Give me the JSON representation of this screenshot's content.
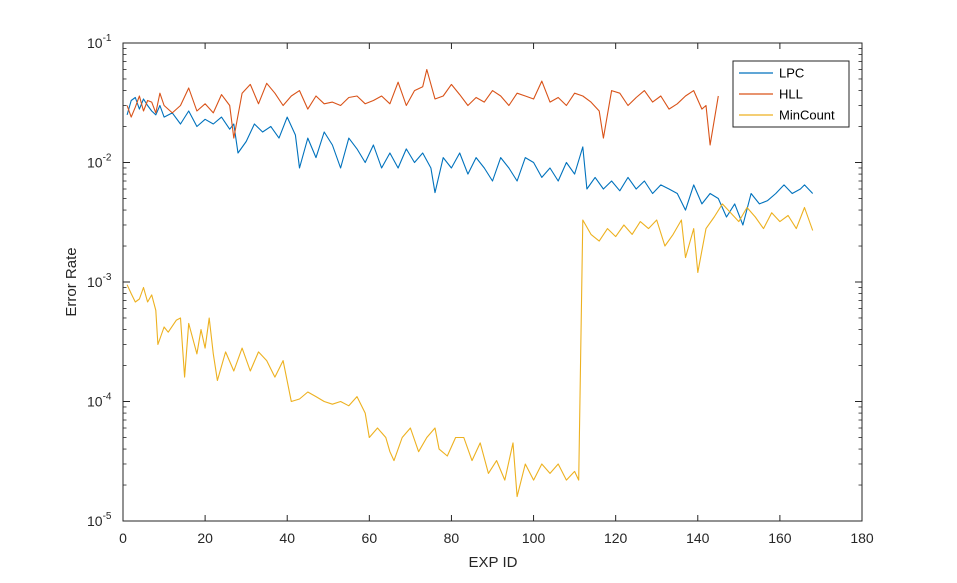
{
  "chart_data": {
    "type": "line",
    "title": "",
    "xlabel": "EXP ID",
    "ylabel": "Error Rate",
    "xlim": [
      0,
      180
    ],
    "ylim": [
      1e-05,
      0.1
    ],
    "yscale": "log",
    "grid": false,
    "legend_position": "top-right",
    "x_ticks": [
      0,
      20,
      40,
      60,
      80,
      100,
      120,
      140,
      160,
      180
    ],
    "x_tick_labels": [
      "0",
      "20",
      "40",
      "60",
      "80",
      "100",
      "120",
      "140",
      "160",
      "180"
    ],
    "y_ticks": [
      1e-05,
      0.0001,
      0.001,
      0.01,
      0.1
    ],
    "y_tick_labels": [
      {
        "base": "10",
        "exp": "-5"
      },
      {
        "base": "10",
        "exp": "-4"
      },
      {
        "base": "10",
        "exp": "-3"
      },
      {
        "base": "10",
        "exp": "-2"
      },
      {
        "base": "10",
        "exp": "-1"
      }
    ],
    "series": [
      {
        "name": "LPC",
        "color": "#0072BD",
        "keypoints": [
          [
            1,
            0.025
          ],
          [
            2,
            0.033
          ],
          [
            3,
            0.035
          ],
          [
            4,
            0.028
          ],
          [
            5,
            0.034
          ],
          [
            6,
            0.03
          ],
          [
            7,
            0.027
          ],
          [
            8,
            0.025
          ],
          [
            9,
            0.03
          ],
          [
            10,
            0.024
          ],
          [
            12,
            0.026
          ],
          [
            14,
            0.021
          ],
          [
            16,
            0.027
          ],
          [
            18,
            0.02
          ],
          [
            20,
            0.023
          ],
          [
            22,
            0.021
          ],
          [
            24,
            0.024
          ],
          [
            26,
            0.019
          ],
          [
            27,
            0.021
          ],
          [
            28,
            0.012
          ],
          [
            30,
            0.015
          ],
          [
            32,
            0.021
          ],
          [
            34,
            0.018
          ],
          [
            36,
            0.02
          ],
          [
            38,
            0.016
          ],
          [
            40,
            0.024
          ],
          [
            42,
            0.017
          ],
          [
            43,
            0.009
          ],
          [
            45,
            0.016
          ],
          [
            47,
            0.011
          ],
          [
            49,
            0.018
          ],
          [
            51,
            0.014
          ],
          [
            53,
            0.009
          ],
          [
            55,
            0.016
          ],
          [
            57,
            0.013
          ],
          [
            59,
            0.01
          ],
          [
            61,
            0.014
          ],
          [
            63,
            0.009
          ],
          [
            65,
            0.012
          ],
          [
            67,
            0.009
          ],
          [
            69,
            0.013
          ],
          [
            71,
            0.01
          ],
          [
            73,
            0.012
          ],
          [
            75,
            0.009
          ],
          [
            76,
            0.0056
          ],
          [
            78,
            0.011
          ],
          [
            80,
            0.009
          ],
          [
            82,
            0.012
          ],
          [
            84,
            0.008
          ],
          [
            86,
            0.011
          ],
          [
            88,
            0.009
          ],
          [
            90,
            0.007
          ],
          [
            92,
            0.011
          ],
          [
            94,
            0.009
          ],
          [
            96,
            0.007
          ],
          [
            98,
            0.011
          ],
          [
            100,
            0.01
          ],
          [
            102,
            0.0075
          ],
          [
            104,
            0.009
          ],
          [
            106,
            0.007
          ],
          [
            108,
            0.01
          ],
          [
            110,
            0.008
          ],
          [
            112,
            0.0135
          ],
          [
            113,
            0.006
          ],
          [
            115,
            0.0075
          ],
          [
            117,
            0.006
          ],
          [
            119,
            0.007
          ],
          [
            121,
            0.0058
          ],
          [
            123,
            0.0075
          ],
          [
            125,
            0.006
          ],
          [
            127,
            0.007
          ],
          [
            129,
            0.0055
          ],
          [
            131,
            0.0065
          ],
          [
            133,
            0.006
          ],
          [
            135,
            0.0055
          ],
          [
            137,
            0.004
          ],
          [
            139,
            0.0065
          ],
          [
            141,
            0.0045
          ],
          [
            143,
            0.0055
          ],
          [
            145,
            0.005
          ],
          [
            147,
            0.0035
          ],
          [
            149,
            0.0045
          ],
          [
            151,
            0.003
          ],
          [
            153,
            0.0055
          ],
          [
            155,
            0.0045
          ],
          [
            157,
            0.0048
          ],
          [
            159,
            0.0055
          ],
          [
            161,
            0.0065
          ],
          [
            163,
            0.0055
          ],
          [
            165,
            0.006
          ],
          [
            166,
            0.0065
          ],
          [
            168,
            0.0055
          ]
        ]
      },
      {
        "name": "HLL",
        "color": "#D95319",
        "keypoints": [
          [
            1,
            0.03
          ],
          [
            2,
            0.024
          ],
          [
            3,
            0.029
          ],
          [
            4,
            0.036
          ],
          [
            5,
            0.027
          ],
          [
            6,
            0.033
          ],
          [
            7,
            0.032
          ],
          [
            8,
            0.026
          ],
          [
            9,
            0.038
          ],
          [
            10,
            0.03
          ],
          [
            12,
            0.026
          ],
          [
            14,
            0.03
          ],
          [
            16,
            0.042
          ],
          [
            18,
            0.027
          ],
          [
            20,
            0.031
          ],
          [
            22,
            0.026
          ],
          [
            24,
            0.037
          ],
          [
            26,
            0.03
          ],
          [
            27,
            0.016
          ],
          [
            29,
            0.038
          ],
          [
            31,
            0.045
          ],
          [
            33,
            0.031
          ],
          [
            35,
            0.046
          ],
          [
            37,
            0.038
          ],
          [
            39,
            0.03
          ],
          [
            41,
            0.036
          ],
          [
            43,
            0.04
          ],
          [
            45,
            0.028
          ],
          [
            47,
            0.036
          ],
          [
            49,
            0.031
          ],
          [
            51,
            0.032
          ],
          [
            53,
            0.03
          ],
          [
            55,
            0.035
          ],
          [
            57,
            0.036
          ],
          [
            59,
            0.031
          ],
          [
            61,
            0.033
          ],
          [
            63,
            0.036
          ],
          [
            65,
            0.031
          ],
          [
            67,
            0.047
          ],
          [
            69,
            0.03
          ],
          [
            71,
            0.04
          ],
          [
            73,
            0.043
          ],
          [
            74,
            0.06
          ],
          [
            76,
            0.034
          ],
          [
            78,
            0.036
          ],
          [
            80,
            0.045
          ],
          [
            82,
            0.037
          ],
          [
            84,
            0.03
          ],
          [
            86,
            0.035
          ],
          [
            88,
            0.032
          ],
          [
            90,
            0.04
          ],
          [
            92,
            0.036
          ],
          [
            94,
            0.03
          ],
          [
            96,
            0.038
          ],
          [
            98,
            0.036
          ],
          [
            100,
            0.034
          ],
          [
            102,
            0.048
          ],
          [
            104,
            0.032
          ],
          [
            106,
            0.035
          ],
          [
            108,
            0.03
          ],
          [
            110,
            0.038
          ],
          [
            112,
            0.036
          ],
          [
            114,
            0.032
          ],
          [
            116,
            0.027
          ],
          [
            117,
            0.016
          ],
          [
            119,
            0.04
          ],
          [
            121,
            0.038
          ],
          [
            123,
            0.03
          ],
          [
            125,
            0.035
          ],
          [
            127,
            0.04
          ],
          [
            129,
            0.032
          ],
          [
            131,
            0.036
          ],
          [
            133,
            0.028
          ],
          [
            135,
            0.031
          ],
          [
            137,
            0.036
          ],
          [
            139,
            0.04
          ],
          [
            141,
            0.028
          ],
          [
            142,
            0.03
          ],
          [
            143,
            0.014
          ],
          [
            145,
            0.036
          ]
        ]
      },
      {
        "name": "MinCount",
        "color": "#EDB120",
        "keypoints": [
          [
            1,
            0.00095
          ],
          [
            2,
            0.0008
          ],
          [
            3,
            0.00068
          ],
          [
            4,
            0.00072
          ],
          [
            5,
            0.0009
          ],
          [
            6,
            0.00068
          ],
          [
            7,
            0.00078
          ],
          [
            8,
            0.00058
          ],
          [
            8.5,
            0.0003
          ],
          [
            10,
            0.00042
          ],
          [
            11,
            0.00038
          ],
          [
            13,
            0.00048
          ],
          [
            14,
            0.0005
          ],
          [
            15,
            0.00016
          ],
          [
            16,
            0.00045
          ],
          [
            18,
            0.00025
          ],
          [
            19,
            0.0004
          ],
          [
            20,
            0.00028
          ],
          [
            21,
            0.0005
          ],
          [
            22,
            0.00025
          ],
          [
            23,
            0.00015
          ],
          [
            25,
            0.00026
          ],
          [
            27,
            0.00018
          ],
          [
            29,
            0.00028
          ],
          [
            31,
            0.00018
          ],
          [
            33,
            0.00026
          ],
          [
            35,
            0.00022
          ],
          [
            37,
            0.00016
          ],
          [
            39,
            0.00022
          ],
          [
            41,
            0.0001
          ],
          [
            43,
            0.000105
          ],
          [
            45,
            0.00012
          ],
          [
            47,
            0.00011
          ],
          [
            49,
            0.0001
          ],
          [
            51,
            9.5e-05
          ],
          [
            53,
            0.0001
          ],
          [
            55,
            9.2e-05
          ],
          [
            57,
            0.00011
          ],
          [
            59,
            8e-05
          ],
          [
            60,
            5e-05
          ],
          [
            62,
            6e-05
          ],
          [
            64,
            5e-05
          ],
          [
            65,
            3.8e-05
          ],
          [
            66,
            3.2e-05
          ],
          [
            68,
            5e-05
          ],
          [
            70,
            6e-05
          ],
          [
            72,
            3.8e-05
          ],
          [
            74,
            5e-05
          ],
          [
            76,
            6e-05
          ],
          [
            77,
            4e-05
          ],
          [
            79,
            3.5e-05
          ],
          [
            81,
            5e-05
          ],
          [
            83,
            5e-05
          ],
          [
            85,
            3.2e-05
          ],
          [
            87,
            4.5e-05
          ],
          [
            89,
            2.5e-05
          ],
          [
            91,
            3.2e-05
          ],
          [
            93,
            2.2e-05
          ],
          [
            95,
            4.5e-05
          ],
          [
            96,
            1.6e-05
          ],
          [
            98,
            3e-05
          ],
          [
            100,
            2.2e-05
          ],
          [
            102,
            3e-05
          ],
          [
            104,
            2.5e-05
          ],
          [
            106,
            3e-05
          ],
          [
            108,
            2.2e-05
          ],
          [
            110,
            2.6e-05
          ],
          [
            111,
            2.2e-05
          ],
          [
            112,
            0.0033
          ],
          [
            114,
            0.0025
          ],
          [
            116,
            0.0022
          ],
          [
            118,
            0.0028
          ],
          [
            120,
            0.0024
          ],
          [
            122,
            0.003
          ],
          [
            124,
            0.0025
          ],
          [
            126,
            0.0032
          ],
          [
            128,
            0.0028
          ],
          [
            130,
            0.0033
          ],
          [
            132,
            0.002
          ],
          [
            134,
            0.0025
          ],
          [
            136,
            0.0033
          ],
          [
            137,
            0.0016
          ],
          [
            139,
            0.0028
          ],
          [
            140,
            0.0012
          ],
          [
            142,
            0.0028
          ],
          [
            144,
            0.0035
          ],
          [
            146,
            0.0045
          ],
          [
            148,
            0.0038
          ],
          [
            150,
            0.0032
          ],
          [
            152,
            0.0042
          ],
          [
            154,
            0.0035
          ],
          [
            156,
            0.0028
          ],
          [
            158,
            0.0038
          ],
          [
            160,
            0.0032
          ],
          [
            162,
            0.0036
          ],
          [
            164,
            0.0028
          ],
          [
            166,
            0.0042
          ],
          [
            168,
            0.0027
          ]
        ]
      }
    ]
  }
}
